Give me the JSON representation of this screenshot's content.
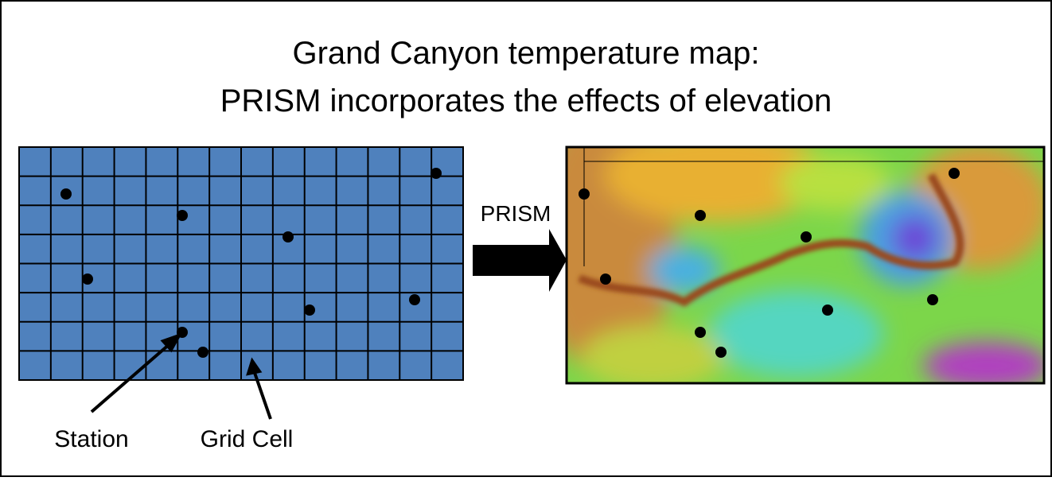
{
  "title": {
    "line1": "Grand Canyon temperature map:",
    "line2": "PRISM incorporates the effects of elevation"
  },
  "arrow_label": "PRISM",
  "labels": {
    "station": "Station",
    "grid_cell": "Grid Cell"
  }
}
